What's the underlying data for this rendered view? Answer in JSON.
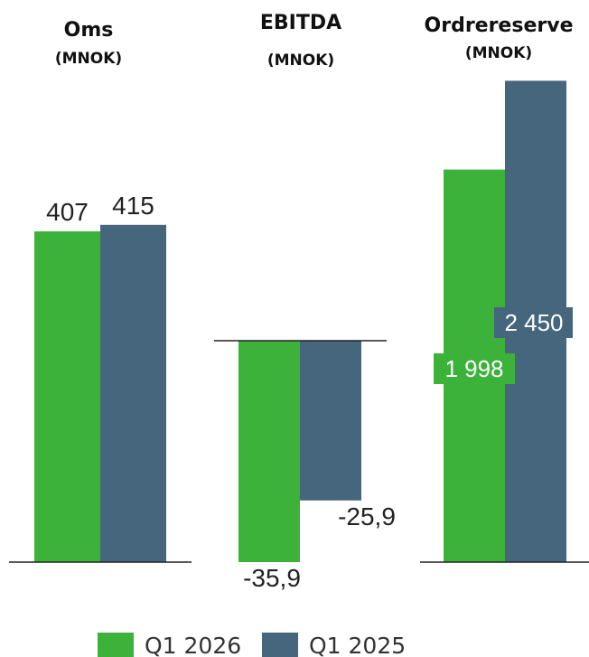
{
  "colors": {
    "q1_2026": "#3cb23a",
    "q1_2025": "#45667c",
    "axis": "#222222"
  },
  "legend": [
    {
      "label": "Q1 2026",
      "color": "#3cb23a"
    },
    {
      "label": "Q1 2025",
      "color": "#45667c"
    }
  ],
  "chart_data": [
    {
      "type": "bar",
      "title": "Oms",
      "subtitle": "(MNOK)",
      "categories": [
        "Q1 2026",
        "Q1 2025"
      ],
      "values": [
        407,
        415
      ],
      "labels": [
        "407",
        "415"
      ]
    },
    {
      "type": "bar",
      "title": "EBITDA",
      "subtitle": "(MNOK)",
      "categories": [
        "Q1 2026",
        "Q1 2025"
      ],
      "values": [
        -35.9,
        -25.9
      ],
      "labels": [
        "-35,9",
        "-25,9"
      ]
    },
    {
      "type": "bar",
      "title": "Ordrereserve",
      "subtitle": "(MNOK)",
      "categories": [
        "Q1 2026",
        "Q1 2025"
      ],
      "values": [
        1998,
        2450
      ],
      "labels": [
        "1 998",
        "2 450"
      ]
    }
  ]
}
